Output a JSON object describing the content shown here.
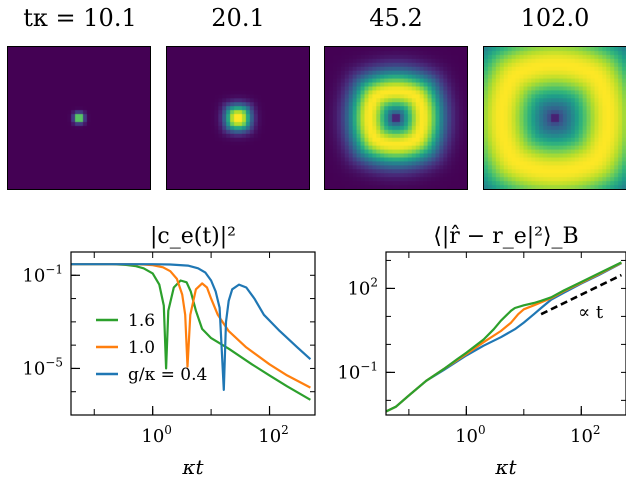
{
  "heatmaps": {
    "labels": [
      "tκ = 10.1",
      "20.1",
      "45.2",
      "102.0"
    ],
    "times": [
      10.1,
      20.1,
      45.2,
      102.0
    ]
  },
  "chart_data": [
    {
      "type": "line",
      "title": "|c_e(t)|²",
      "xlabel": "κt",
      "ylabel": "",
      "xscale": "log",
      "yscale": "log",
      "xlim": [
        0.04,
        600
      ],
      "ylim": [
        1e-07,
        1
      ],
      "xticks": [
        {
          "value": 1,
          "label": "10⁰"
        },
        {
          "value": 100,
          "label": "10²"
        }
      ],
      "yticks": [
        {
          "value": 0.1,
          "label": "10⁻¹"
        },
        {
          "value": 1e-05,
          "label": "10⁻⁵"
        }
      ],
      "grid": false,
      "legend": "lower-left",
      "series": [
        {
          "name": "1.6",
          "color": "#2ca02c",
          "x": [
            0.04,
            0.2,
            0.35,
            0.5,
            0.7,
            1.0,
            1.3,
            1.55,
            1.7,
            1.85,
            2.3,
            3.0,
            3.8,
            4.5,
            5.5,
            7,
            10,
            20,
            50,
            100,
            200,
            500
          ],
          "y": [
            0.3,
            0.3,
            0.28,
            0.25,
            0.2,
            0.12,
            0.04,
            0.005,
            1e-05,
            0.003,
            0.03,
            0.06,
            0.05,
            0.02,
            0.003,
            0.0005,
            0.0002,
            7e-05,
            1.5e-05,
            5e-06,
            1.7e-06,
            4.5e-07
          ]
        },
        {
          "name": "1.0",
          "color": "#ff7f0e",
          "x": [
            0.04,
            0.4,
            0.7,
            1.0,
            1.5,
            2.0,
            2.6,
            3.2,
            3.6,
            3.95,
            4.4,
            5.5,
            7,
            8.5,
            10,
            13,
            20,
            40,
            100,
            200,
            500
          ],
          "y": [
            0.3,
            0.3,
            0.29,
            0.27,
            0.22,
            0.15,
            0.07,
            0.015,
            0.002,
            1.2e-05,
            0.002,
            0.025,
            0.045,
            0.03,
            0.01,
            0.002,
            0.0004,
            8e-05,
            1.5e-05,
            5e-06,
            1.5e-06
          ]
        },
        {
          "name": "g/κ = 0.4",
          "color": "#1f77b4",
          "x": [
            0.04,
            1.0,
            2.0,
            4.0,
            6.0,
            8.0,
            10,
            12,
            14,
            16.5,
            18,
            20,
            23,
            30,
            40,
            55,
            80,
            150,
            300,
            500
          ],
          "y": [
            0.3,
            0.3,
            0.29,
            0.26,
            0.2,
            0.13,
            0.06,
            0.02,
            0.004,
            1.2e-06,
            0.001,
            0.008,
            0.025,
            0.04,
            0.03,
            0.01,
            0.002,
            0.0004,
            8e-05,
            2.5e-05
          ]
        }
      ]
    },
    {
      "type": "line",
      "title": "⟨|r̂ − r_e|²⟩_B",
      "xlabel": "κt",
      "ylabel": "",
      "xscale": "log",
      "yscale": "log",
      "xlim": [
        0.04,
        600
      ],
      "ylim": [
        0.003,
        2000
      ],
      "xticks": [
        {
          "value": 1,
          "label": "10⁰"
        },
        {
          "value": 100,
          "label": "10²"
        }
      ],
      "yticks": [
        {
          "value": 100,
          "label": "10²"
        },
        {
          "value": 0.1,
          "label": "10⁻¹"
        }
      ],
      "grid": false,
      "annotation": "∝ t",
      "series": [
        {
          "name": "g/κ = 0.4",
          "color": "#1f77b4",
          "x": [
            0.04,
            0.06,
            0.1,
            0.2,
            0.4,
            0.7,
            1.0,
            2,
            4,
            7,
            10,
            15,
            20,
            30,
            50,
            100,
            200,
            500
          ],
          "y": [
            0.004,
            0.006,
            0.015,
            0.05,
            0.12,
            0.25,
            0.4,
            0.9,
            1.8,
            3.5,
            6,
            12,
            20,
            40,
            70,
            150,
            300,
            800
          ]
        },
        {
          "name": "1.0",
          "color": "#ff7f0e",
          "x": [
            0.04,
            0.06,
            0.1,
            0.2,
            0.4,
            0.7,
            1.0,
            2,
            4,
            6,
            8,
            10,
            15,
            20,
            30,
            50,
            100,
            200,
            500
          ],
          "y": [
            0.004,
            0.006,
            0.015,
            0.05,
            0.13,
            0.28,
            0.45,
            1.2,
            3,
            6,
            12,
            18,
            25,
            32,
            45,
            80,
            160,
            320,
            820
          ]
        },
        {
          "name": "1.6",
          "color": "#2ca02c",
          "x": [
            0.04,
            0.06,
            0.1,
            0.2,
            0.4,
            0.7,
            1.0,
            2,
            3,
            4,
            5,
            6,
            7,
            10,
            15,
            20,
            30,
            50,
            100,
            200,
            500
          ],
          "y": [
            0.004,
            0.006,
            0.015,
            0.05,
            0.13,
            0.3,
            0.5,
            1.5,
            3.5,
            7,
            11,
            16,
            20,
            25,
            30,
            36,
            48,
            85,
            170,
            340,
            850
          ]
        },
        {
          "name": "",
          "color": "#000000",
          "dashed": true,
          "x": [
            20,
            500
          ],
          "y": [
            12,
            300
          ]
        }
      ]
    }
  ]
}
